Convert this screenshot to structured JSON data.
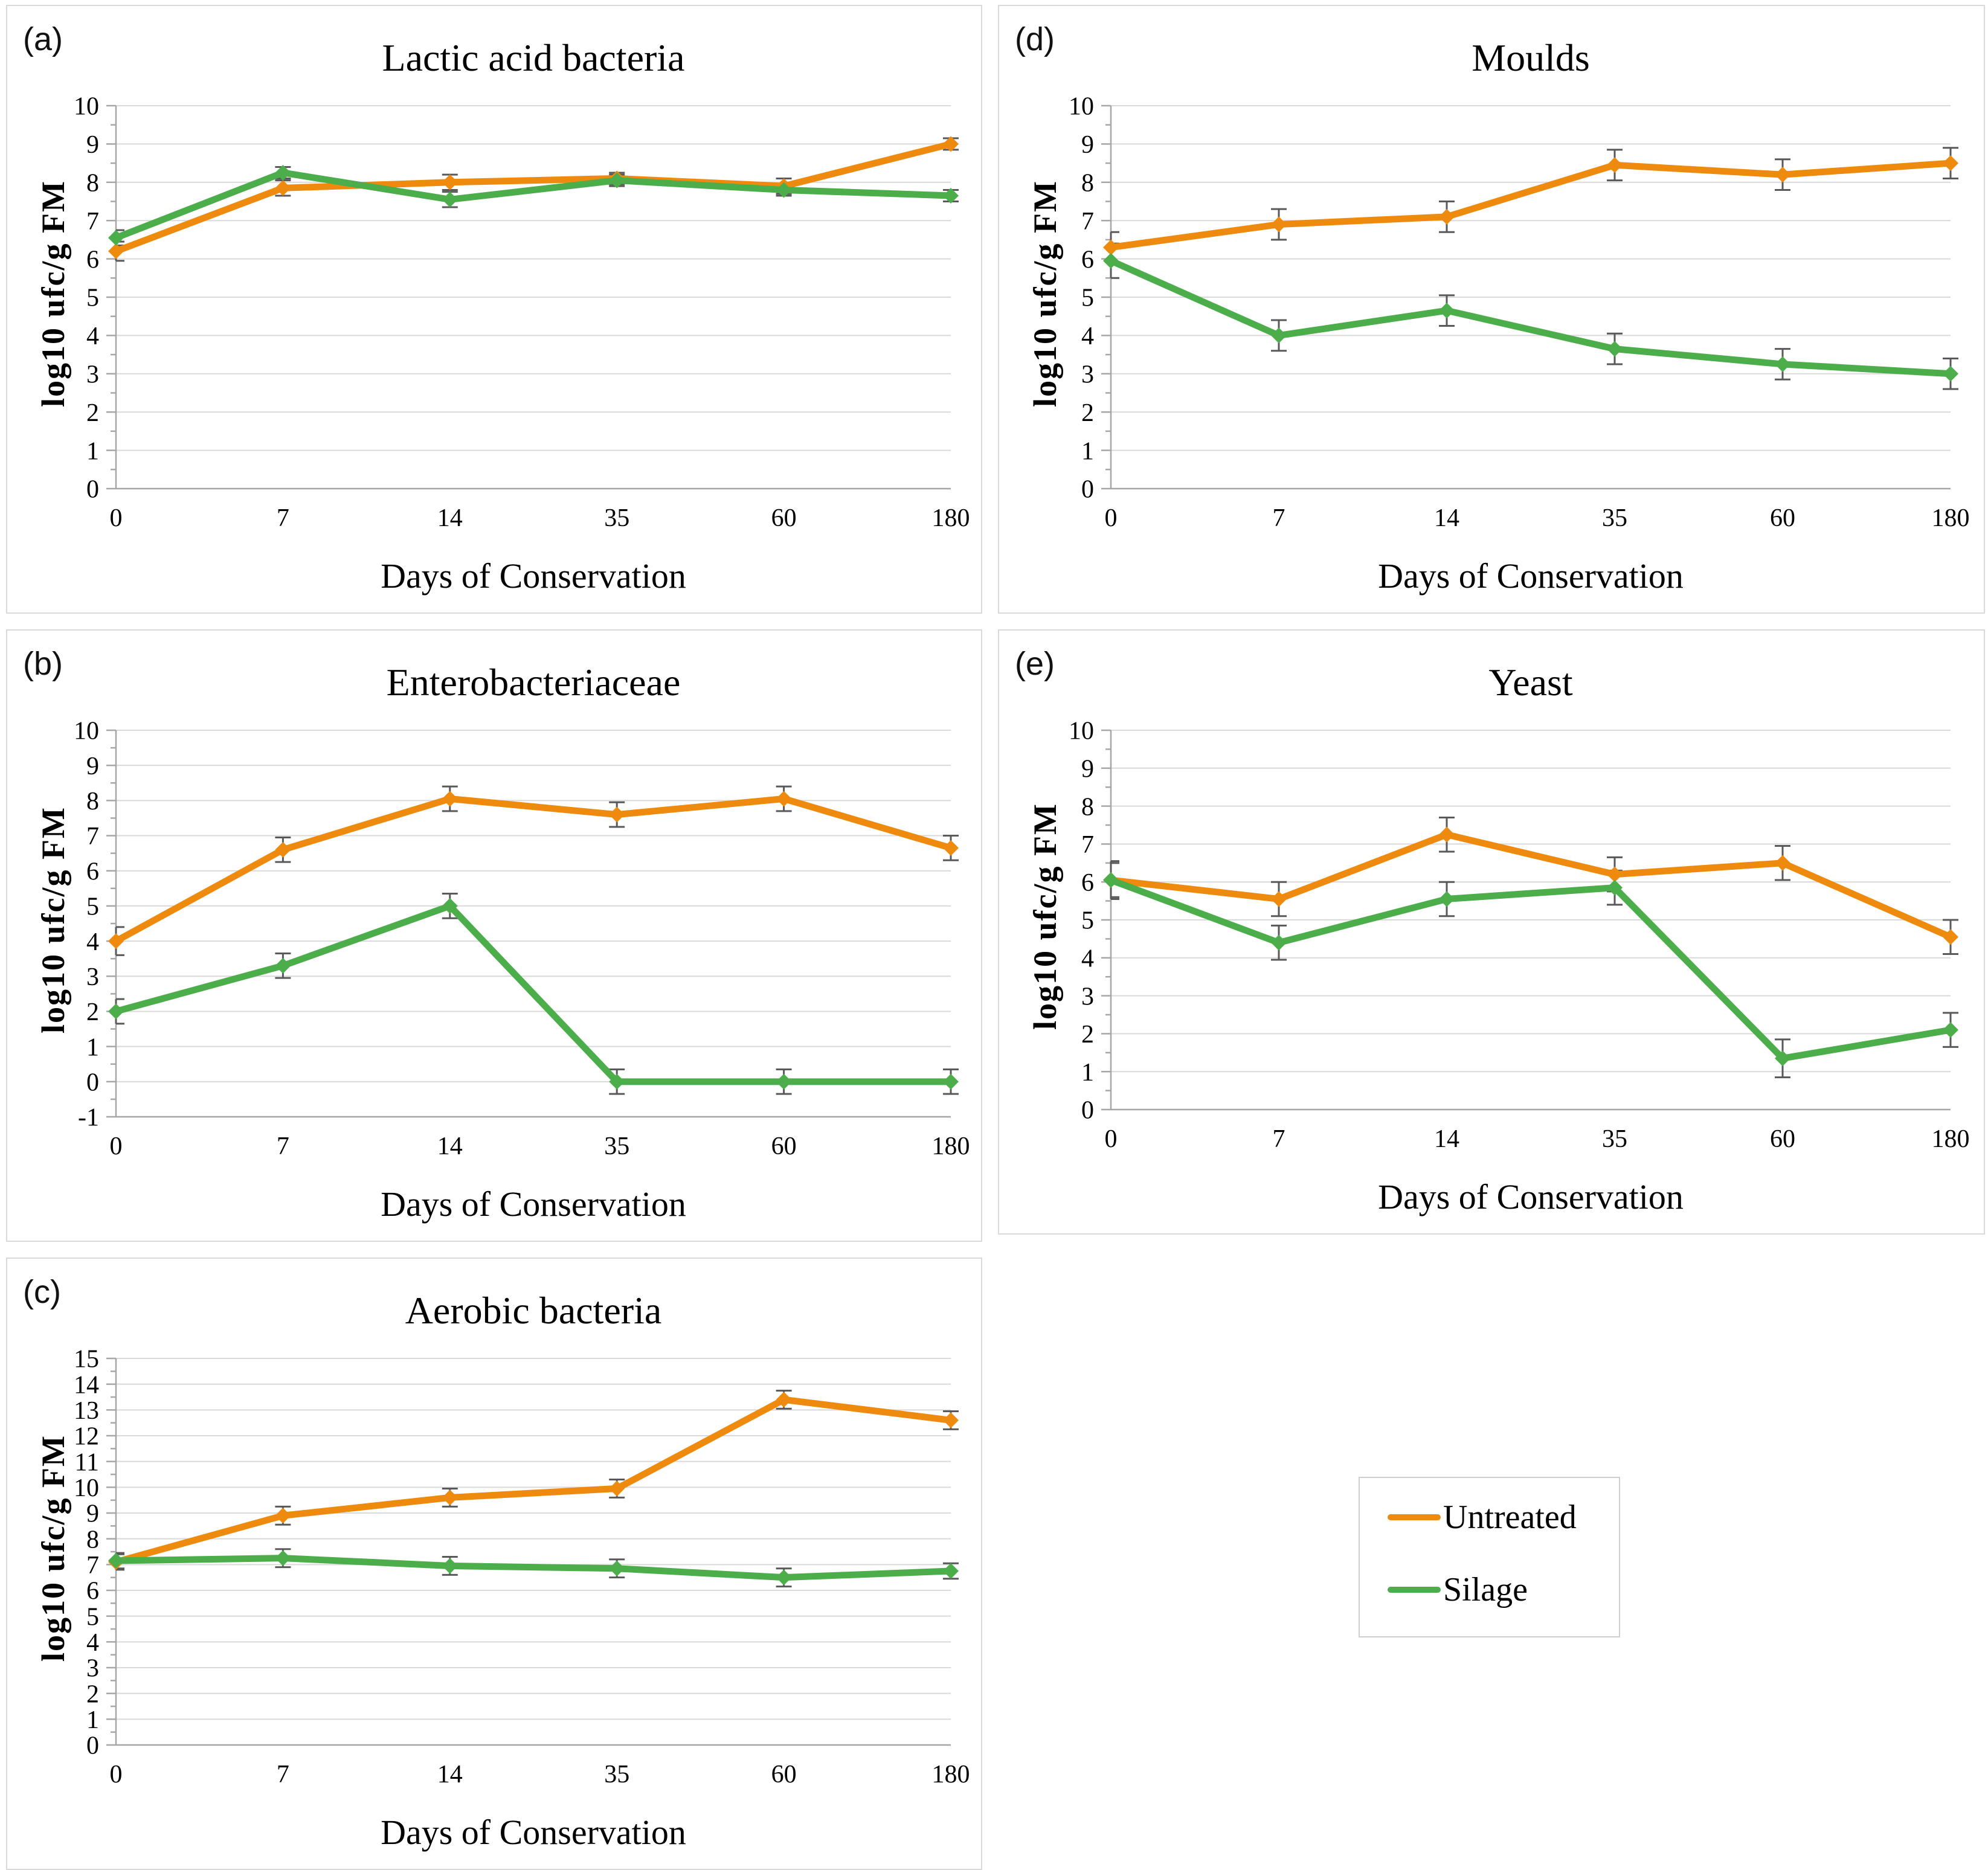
{
  "figure": {
    "xlabel": "Days of Conservation",
    "ylabel": "log10 ufc/g FM",
    "categories": [
      "0",
      "7",
      "14",
      "35",
      "60",
      "180"
    ],
    "colors": {
      "untreated": "#EE8A0E",
      "silage": "#4CAD4B",
      "grid": "#D9D9D9",
      "axis": "#A6A6A6",
      "error_bar": "#595959",
      "text": "#000000"
    },
    "legend": {
      "items": [
        {
          "name": "Untreated",
          "color": "#EE8A0E"
        },
        {
          "name": "Silage",
          "color": "#4CAD4B"
        }
      ]
    }
  },
  "chart_data": [
    {
      "panel": "(a)",
      "type": "line",
      "title": "Lactic acid bacteria",
      "xlabel": "Days of Conservation",
      "ylabel": "log10 ufc/g FM",
      "categories": [
        "0",
        "7",
        "14",
        "35",
        "60",
        "180"
      ],
      "ylim": [
        0,
        10
      ],
      "ytick_step": 1,
      "grid": true,
      "series": [
        {
          "name": "Untreated",
          "color": "#EE8A0E",
          "values": [
            6.2,
            7.85,
            8.0,
            8.1,
            7.9,
            9.0
          ],
          "errors": [
            0.25,
            0.2,
            0.2,
            0.15,
            0.2,
            0.15
          ]
        },
        {
          "name": "Silage",
          "color": "#4CAD4B",
          "values": [
            6.55,
            8.25,
            7.55,
            8.05,
            7.8,
            7.65
          ],
          "errors": [
            0.2,
            0.15,
            0.2,
            0.15,
            0.15,
            0.15
          ]
        }
      ]
    },
    {
      "panel": "(b)",
      "type": "line",
      "title": "Enterobacteriaceae",
      "xlabel": "Days of Conservation",
      "ylabel": "log10 ufc/g FM",
      "categories": [
        "0",
        "7",
        "14",
        "35",
        "60",
        "180"
      ],
      "ylim": [
        -1,
        10
      ],
      "ytick_step": 1,
      "grid": true,
      "series": [
        {
          "name": "Untreated",
          "color": "#EE8A0E",
          "values": [
            4.0,
            6.6,
            8.05,
            7.6,
            8.05,
            6.65
          ],
          "errors": [
            0.4,
            0.35,
            0.35,
            0.35,
            0.35,
            0.35
          ]
        },
        {
          "name": "Silage",
          "color": "#4CAD4B",
          "values": [
            2.0,
            3.3,
            5.0,
            0.0,
            0.0,
            0.0
          ],
          "errors": [
            0.35,
            0.35,
            0.35,
            0.35,
            0.35,
            0.35
          ]
        }
      ]
    },
    {
      "panel": "(c)",
      "type": "line",
      "title": "Aerobic bacteria",
      "xlabel": "Days of Conservation",
      "ylabel": "log10 ufc/g FM",
      "categories": [
        "0",
        "7",
        "14",
        "35",
        "60",
        "180"
      ],
      "ylim": [
        0,
        15
      ],
      "ytick_step": 1,
      "grid": true,
      "series": [
        {
          "name": "Untreated",
          "color": "#EE8A0E",
          "values": [
            7.1,
            8.9,
            9.6,
            9.95,
            13.4,
            12.6
          ],
          "errors": [
            0.3,
            0.35,
            0.35,
            0.35,
            0.35,
            0.35
          ]
        },
        {
          "name": "Silage",
          "color": "#4CAD4B",
          "values": [
            7.15,
            7.25,
            6.95,
            6.85,
            6.5,
            6.75
          ],
          "errors": [
            0.3,
            0.35,
            0.35,
            0.35,
            0.35,
            0.3
          ]
        }
      ]
    },
    {
      "panel": "(d)",
      "type": "line",
      "title": "Moulds",
      "xlabel": "Days of Conservation",
      "ylabel": "log10 ufc/g FM",
      "categories": [
        "0",
        "7",
        "14",
        "35",
        "60",
        "180"
      ],
      "ylim": [
        0,
        10
      ],
      "ytick_step": 1,
      "grid": true,
      "series": [
        {
          "name": "Untreated",
          "color": "#EE8A0E",
          "values": [
            6.3,
            6.9,
            7.1,
            8.45,
            8.2,
            8.5
          ],
          "errors": [
            0.4,
            0.4,
            0.4,
            0.4,
            0.4,
            0.4
          ]
        },
        {
          "name": "Silage",
          "color": "#4CAD4B",
          "values": [
            5.95,
            4.0,
            4.65,
            3.65,
            3.25,
            3.0
          ],
          "errors": [
            0.45,
            0.4,
            0.4,
            0.4,
            0.4,
            0.4
          ]
        }
      ]
    },
    {
      "panel": "(e)",
      "type": "line",
      "title": "Yeast",
      "xlabel": "Days of Conservation",
      "ylabel": "log10 ufc/g FM",
      "categories": [
        "0",
        "7",
        "14",
        "35",
        "60",
        "180"
      ],
      "ylim": [
        0,
        10
      ],
      "ytick_step": 1,
      "grid": true,
      "series": [
        {
          "name": "Untreated",
          "color": "#EE8A0E",
          "values": [
            6.05,
            5.55,
            7.25,
            6.2,
            6.5,
            4.55
          ],
          "errors": [
            0.5,
            0.45,
            0.45,
            0.45,
            0.45,
            0.45
          ]
        },
        {
          "name": "Silage",
          "color": "#4CAD4B",
          "values": [
            6.05,
            4.4,
            5.55,
            5.85,
            1.35,
            2.1
          ],
          "errors": [
            0.45,
            0.45,
            0.45,
            0.45,
            0.5,
            0.45
          ]
        }
      ]
    }
  ]
}
